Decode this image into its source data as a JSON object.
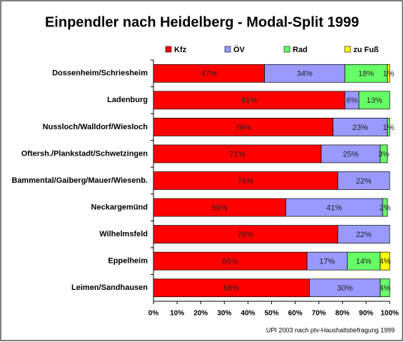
{
  "chart_data": {
    "type": "stacked-bar-horizontal",
    "title": "Einpendler nach Heidelberg - Modal-Split 1999",
    "source": "UPI 2003 nach ptv-Haushaltsbefragung 1999",
    "categories": [
      "Dossenheim/Schriesheim",
      "Ladenburg",
      "Nussloch/Walldorf/Wiesloch",
      "Oftersh./Plankstadt/Schwetzingen",
      "Bammental/Gaiberg/Mauer/Wiesenb.",
      "Neckargemünd",
      "Wilhelmsfeld",
      "Eppelheim",
      "Leimen/Sandhausen"
    ],
    "series": [
      {
        "name": "Kfz",
        "color": "#ff0000",
        "values": [
          47,
          81,
          76,
          71,
          78,
          56,
          78,
          65,
          66
        ],
        "value_labels": [
          "47%",
          "81%",
          "76%",
          "71%",
          "78%",
          "56%",
          "78%",
          "65%",
          "66%"
        ]
      },
      {
        "name": "ÖV",
        "color": "#9999ff",
        "values": [
          34,
          6,
          23,
          25,
          22,
          41,
          22,
          17,
          30
        ],
        "value_labels": [
          "34%",
          "6%",
          "23%",
          "25%",
          "22%",
          "41%",
          "22%",
          "17%",
          "30%"
        ]
      },
      {
        "name": "Rad",
        "color": "#66ff66",
        "values": [
          18,
          13,
          1,
          3,
          0,
          2,
          0,
          14,
          4
        ],
        "value_labels": [
          "18%",
          "13%",
          "1%",
          "3%",
          null,
          "2%",
          null,
          "14%",
          "4%"
        ]
      },
      {
        "name": "zu Fuß",
        "color": "#ffff00",
        "values": [
          1,
          0,
          0,
          0,
          0,
          0,
          0,
          4,
          0
        ],
        "value_labels": [
          "1%",
          null,
          null,
          null,
          null,
          null,
          null,
          "4%",
          null
        ]
      }
    ],
    "xlim": [
      0,
      100
    ],
    "xticks": [
      {
        "value": 0,
        "label": "0%"
      },
      {
        "value": 10,
        "label": "10%"
      },
      {
        "value": 20,
        "label": "20%"
      },
      {
        "value": 30,
        "label": "30%"
      },
      {
        "value": 40,
        "label": "40%"
      },
      {
        "value": 50,
        "label": "50%"
      },
      {
        "value": 60,
        "label": "60%"
      },
      {
        "value": 70,
        "label": "70%"
      },
      {
        "value": 80,
        "label": "80%"
      },
      {
        "value": 90,
        "label": "90%"
      },
      {
        "value": 100,
        "label": "100%"
      }
    ]
  }
}
